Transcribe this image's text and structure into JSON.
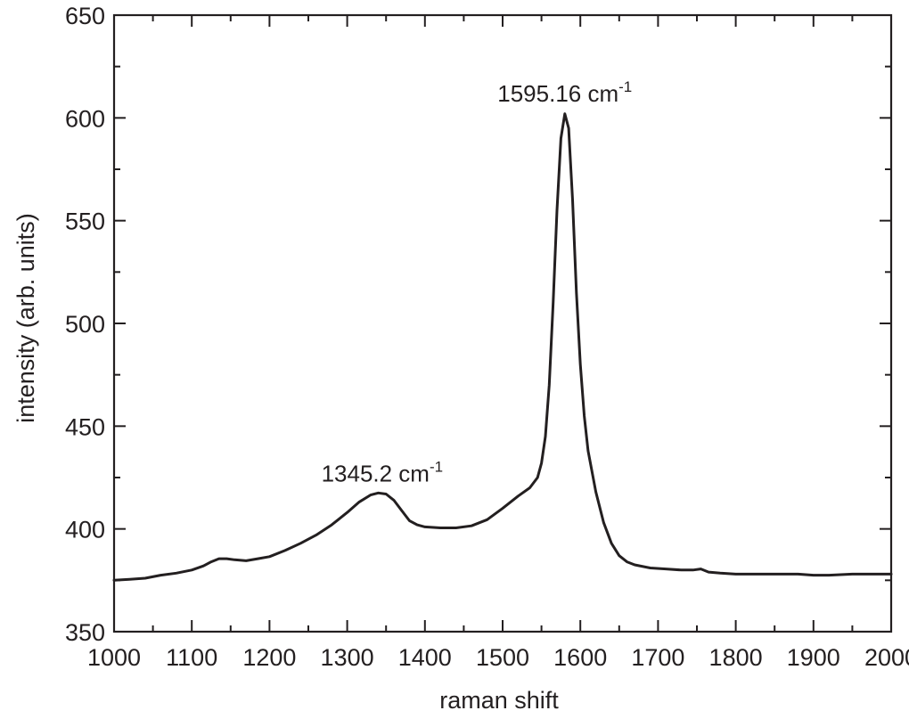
{
  "chart_data": {
    "type": "line",
    "xlabel": "raman shift",
    "ylabel": "intensity (arb. units)",
    "xlim": [
      1000,
      2000
    ],
    "ylim": [
      350,
      650
    ],
    "xticks": [
      1000,
      1100,
      1200,
      1300,
      1400,
      1500,
      1600,
      1700,
      1800,
      1900,
      2000
    ],
    "yticks": [
      350,
      400,
      450,
      500,
      550,
      600,
      650
    ],
    "xtick_labels": [
      "1000",
      "1100",
      "1200",
      "1300",
      "1400",
      "1500",
      "1600",
      "1700",
      "1800",
      "1900",
      "2000"
    ],
    "ytick_labels": [
      "350",
      "400",
      "450",
      "500",
      "550",
      "600",
      "650"
    ],
    "grid": false,
    "line_color": "#231f20",
    "series": [
      {
        "x": [
          1000,
          1020,
          1040,
          1060,
          1080,
          1100,
          1115,
          1125,
          1135,
          1145,
          1155,
          1170,
          1185,
          1200,
          1220,
          1240,
          1260,
          1280,
          1300,
          1315,
          1330,
          1340,
          1350,
          1360,
          1370,
          1380,
          1390,
          1400,
          1420,
          1440,
          1460,
          1480,
          1500,
          1520,
          1535,
          1545,
          1550,
          1555,
          1560,
          1565,
          1570,
          1575,
          1580,
          1585,
          1590,
          1595,
          1600,
          1605,
          1610,
          1620,
          1630,
          1640,
          1650,
          1660,
          1670,
          1690,
          1710,
          1730,
          1745,
          1755,
          1765,
          1780,
          1800,
          1830,
          1860,
          1880,
          1900,
          1920,
          1950,
          1980,
          2000
        ],
        "y": [
          375,
          375.5,
          376,
          377.5,
          378.5,
          380,
          382,
          384,
          385.5,
          385.5,
          385,
          384.5,
          385.5,
          386.5,
          389.5,
          393,
          397,
          402,
          408,
          413,
          416.5,
          417.5,
          417,
          414,
          409,
          404,
          402,
          401,
          400.5,
          400.5,
          401.5,
          404.5,
          410,
          416,
          420,
          425,
          432,
          445,
          470,
          510,
          555,
          590,
          602,
          595,
          560,
          515,
          480,
          455,
          438,
          418,
          403,
          393,
          387,
          384,
          382.5,
          381,
          380.5,
          380,
          380,
          380.5,
          379,
          378.5,
          378,
          378,
          378,
          378,
          377.5,
          377.5,
          378,
          378,
          378
        ]
      }
    ],
    "annotations": [
      {
        "text": "1595.16 cm",
        "sup": "-1",
        "x": 1580,
        "y": 608
      },
      {
        "text": "1345.2 cm",
        "sup": "-1",
        "x": 1345,
        "y": 423
      }
    ]
  }
}
